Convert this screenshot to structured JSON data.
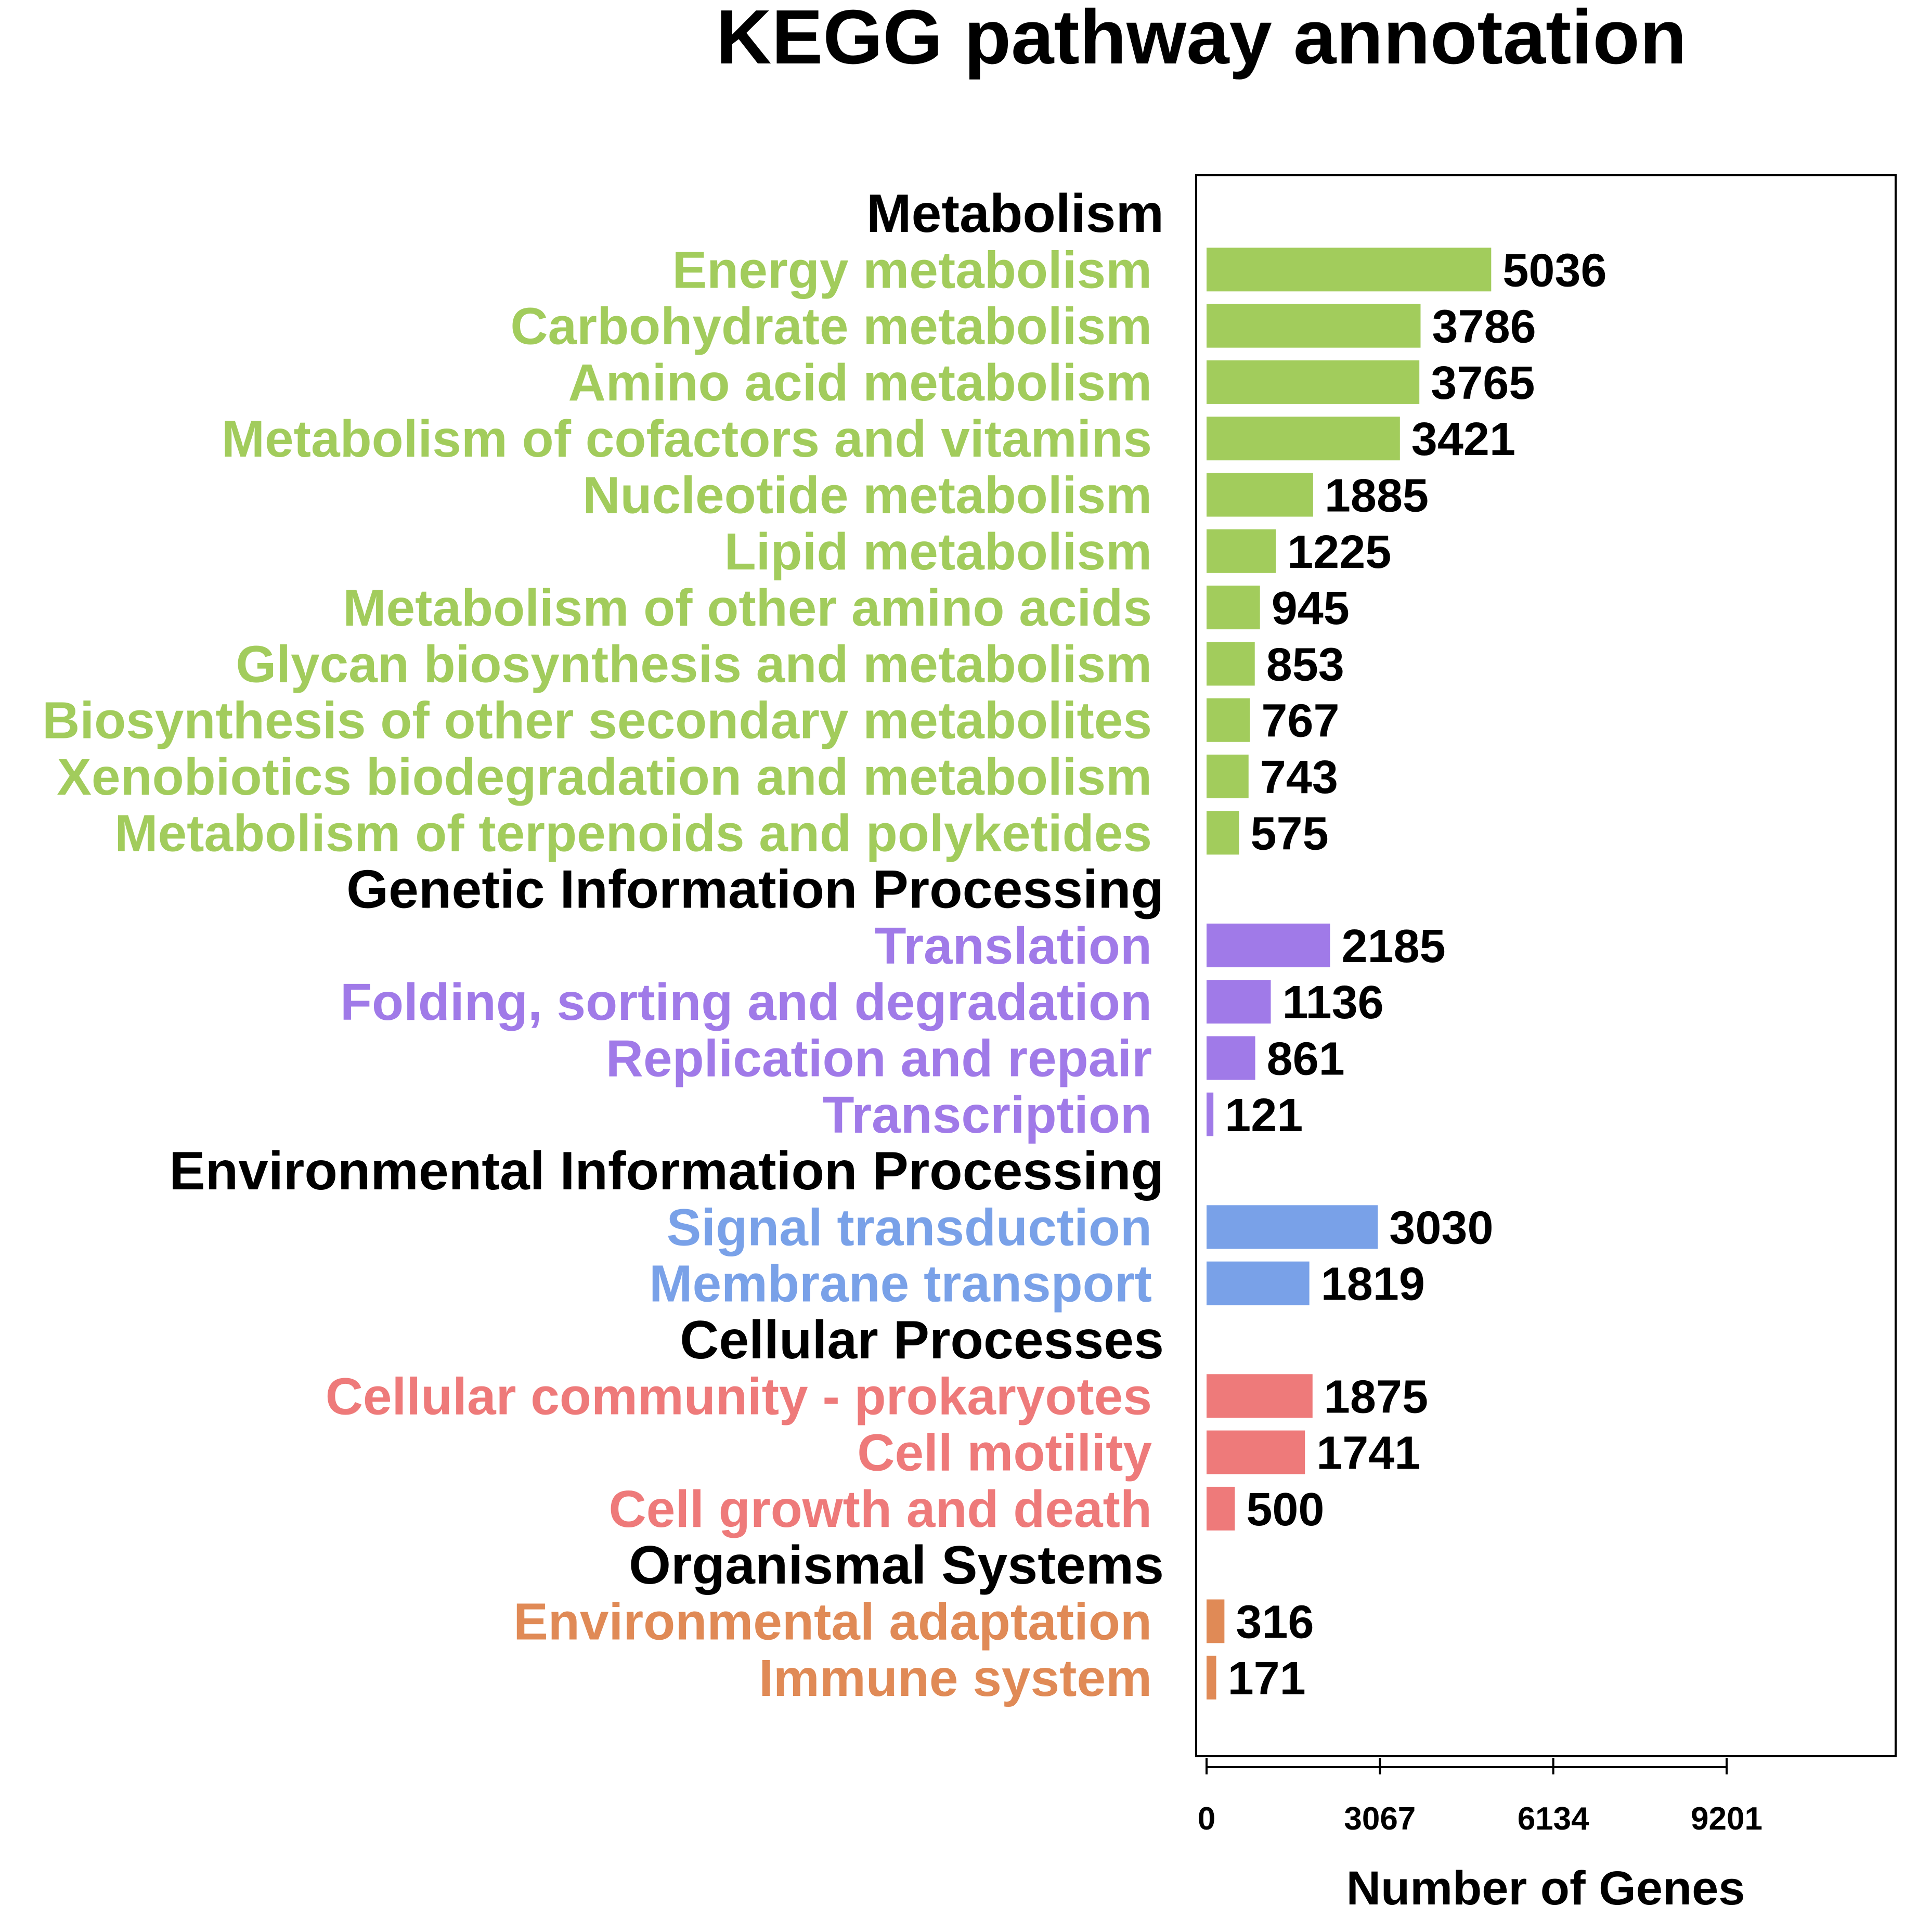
{
  "chart_data": {
    "type": "bar",
    "orientation": "horizontal",
    "title": "KEGG pathway annotation",
    "xlabel": "Number of Genes",
    "ylabel": "",
    "xlim": [
      0,
      12268
    ],
    "x_ticks": [
      0,
      3067,
      6134,
      9201
    ],
    "grid": false,
    "groups": [
      {
        "name": "Metabolism",
        "color": "#a2cc5c",
        "categories": [
          "Energy metabolism",
          "Carbohydrate metabolism",
          "Amino acid metabolism",
          "Metabolism of cofactors and vitamins",
          "Nucleotide metabolism",
          "Lipid metabolism",
          "Metabolism of other amino acids",
          "Glycan biosynthesis and metabolism",
          "Biosynthesis of other secondary metabolites",
          "Xenobiotics biodegradation and metabolism",
          "Metabolism of terpenoids and polyketides"
        ],
        "values": [
          5036,
          3786,
          3765,
          3421,
          1885,
          1225,
          945,
          853,
          767,
          743,
          575
        ]
      },
      {
        "name": "Genetic Information Processing",
        "color": "#a07ae8",
        "categories": [
          "Translation",
          "Folding, sorting and degradation",
          "Replication and repair",
          "Transcription"
        ],
        "values": [
          2185,
          1136,
          861,
          121
        ]
      },
      {
        "name": "Environmental Information Processing",
        "color": "#79a1e8",
        "categories": [
          "Signal transduction",
          "Membrane transport"
        ],
        "values": [
          3030,
          1819
        ]
      },
      {
        "name": "Cellular Processes",
        "color": "#ee7a7a",
        "categories": [
          "Cellular community - prokaryotes",
          "Cell motility",
          "Cell growth and death"
        ],
        "values": [
          1875,
          1741,
          500
        ]
      },
      {
        "name": "Organismal Systems",
        "color": "#e08a56",
        "categories": [
          "Environmental adaptation",
          "Immune system"
        ],
        "values": [
          316,
          171
        ]
      }
    ]
  }
}
